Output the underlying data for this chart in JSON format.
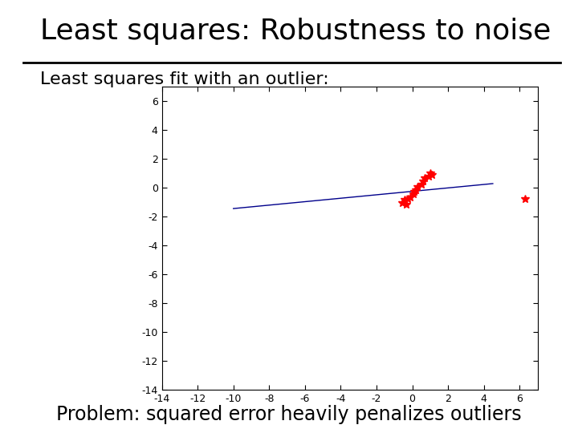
{
  "title": "Least squares: Robustness to noise",
  "subtitle": "Least squares fit with an outlier:",
  "footer": "Problem: squared error heavily penalizes outliers",
  "title_fontsize": 26,
  "subtitle_fontsize": 16,
  "footer_fontsize": 17,
  "bg_color": "#ffffff",
  "xlim": [
    -14,
    7
  ],
  "ylim": [
    -14,
    7
  ],
  "xticks": [
    -14,
    -12,
    -10,
    -8,
    -6,
    -4,
    -2,
    0,
    2,
    4,
    6
  ],
  "yticks": [
    -14,
    -12,
    -10,
    -8,
    -6,
    -4,
    -2,
    0,
    2,
    4,
    6
  ],
  "line_color": "#00008B",
  "line_x": [
    -10,
    4.5
  ],
  "line_y": [
    -1.45,
    0.28
  ],
  "data_points": [
    [
      -0.55,
      -1.05
    ],
    [
      -0.45,
      -0.85
    ],
    [
      -0.35,
      -1.15
    ],
    [
      -0.25,
      -0.8
    ],
    [
      -0.1,
      -0.65
    ],
    [
      0.05,
      -0.45
    ],
    [
      0.1,
      -0.25
    ],
    [
      0.2,
      -0.15
    ],
    [
      0.3,
      0.05
    ],
    [
      0.5,
      0.25
    ],
    [
      0.6,
      0.45
    ],
    [
      0.7,
      0.65
    ],
    [
      0.9,
      0.8
    ],
    [
      1.0,
      1.0
    ],
    [
      1.1,
      0.9
    ]
  ],
  "outlier": [
    6.3,
    -0.75
  ],
  "point_color": "#ff0000",
  "point_marker": "*",
  "point_size": 30
}
